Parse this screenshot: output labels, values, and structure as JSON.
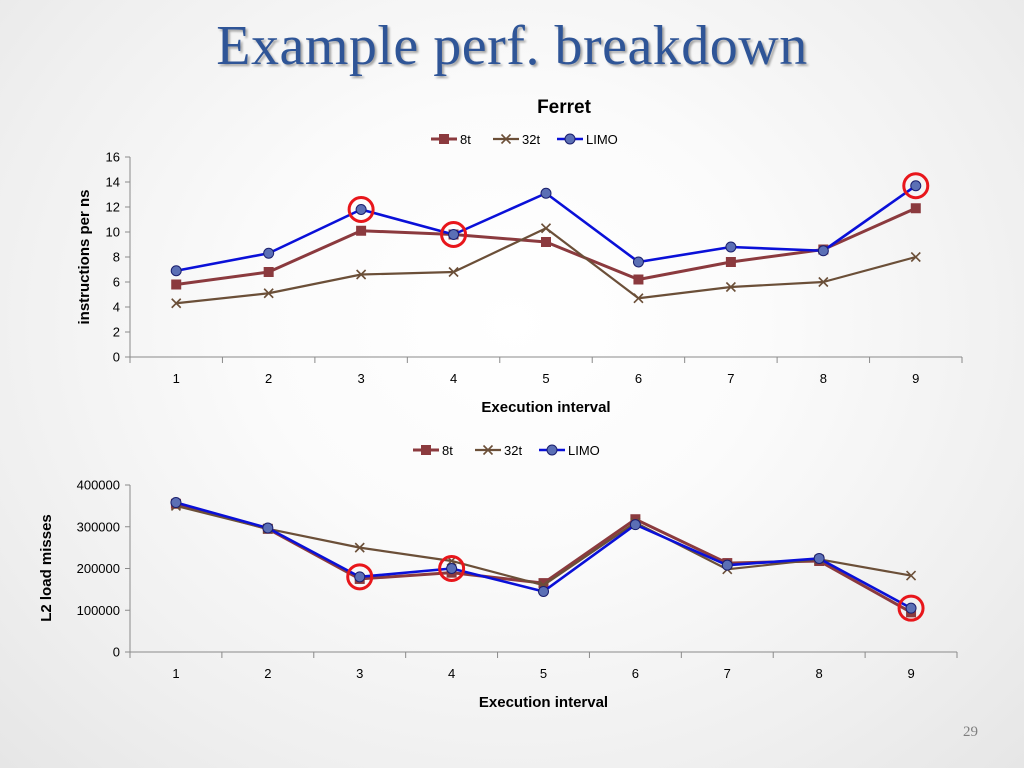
{
  "slide": {
    "title": "Example perf. breakdown",
    "page_number": "29"
  },
  "colors": {
    "title": "#2f5597",
    "series_8t": "#8b3a3e",
    "series_32t": "#6b4f38",
    "series_limo": "#0a10d8",
    "limo_marker": "#5b6fb5",
    "highlight_circle": "#e8161b",
    "axis": "#8a8a8a"
  },
  "chart_data": [
    {
      "type": "line",
      "title": "Ferret",
      "xlabel": "Execution interval",
      "ylabel": "instructions per ns",
      "categories": [
        "1",
        "2",
        "3",
        "4",
        "5",
        "6",
        "7",
        "8",
        "9"
      ],
      "ylim": [
        0,
        16
      ],
      "yticks": [
        0,
        2,
        4,
        6,
        8,
        10,
        12,
        14,
        16
      ],
      "ytick_labels": [
        "0",
        "2",
        "4",
        "6",
        "8",
        "10",
        "12",
        "14",
        "16"
      ],
      "legend_position": "top",
      "series": [
        {
          "name": "8t",
          "marker": "square",
          "values": [
            5.8,
            6.8,
            10.1,
            9.8,
            9.2,
            6.2,
            7.6,
            8.6,
            11.9
          ]
        },
        {
          "name": "32t",
          "marker": "x",
          "values": [
            4.3,
            5.1,
            6.6,
            6.8,
            10.3,
            4.7,
            5.6,
            6.0,
            8.0
          ]
        },
        {
          "name": "LIMO",
          "marker": "circle",
          "values": [
            6.9,
            8.3,
            11.8,
            9.8,
            13.1,
            7.6,
            8.8,
            8.5,
            13.7
          ]
        }
      ],
      "highlighted_points": [
        3,
        4,
        9
      ]
    },
    {
      "type": "line",
      "title": "",
      "xlabel": "Execution interval",
      "ylabel": "L2 load misses",
      "categories": [
        "1",
        "2",
        "3",
        "4",
        "5",
        "6",
        "7",
        "8",
        "9"
      ],
      "ylim": [
        0,
        400000
      ],
      "yticks": [
        0,
        100000,
        200000,
        300000,
        400000
      ],
      "ytick_labels": [
        "0",
        "100000",
        "200000",
        "300000",
        "400000"
      ],
      "legend_position": "top",
      "series": [
        {
          "name": "8t",
          "marker": "square",
          "values": [
            355000,
            295000,
            175000,
            190000,
            165000,
            318000,
            213000,
            218000,
            95000
          ]
        },
        {
          "name": "32t",
          "marker": "x",
          "values": [
            350000,
            295000,
            250000,
            218000,
            160000,
            310000,
            198000,
            222000,
            183000
          ]
        },
        {
          "name": "LIMO",
          "marker": "circle",
          "values": [
            358000,
            297000,
            180000,
            200000,
            145000,
            305000,
            208000,
            224000,
            105000
          ]
        }
      ],
      "highlighted_points": [
        3,
        4,
        9
      ]
    }
  ]
}
